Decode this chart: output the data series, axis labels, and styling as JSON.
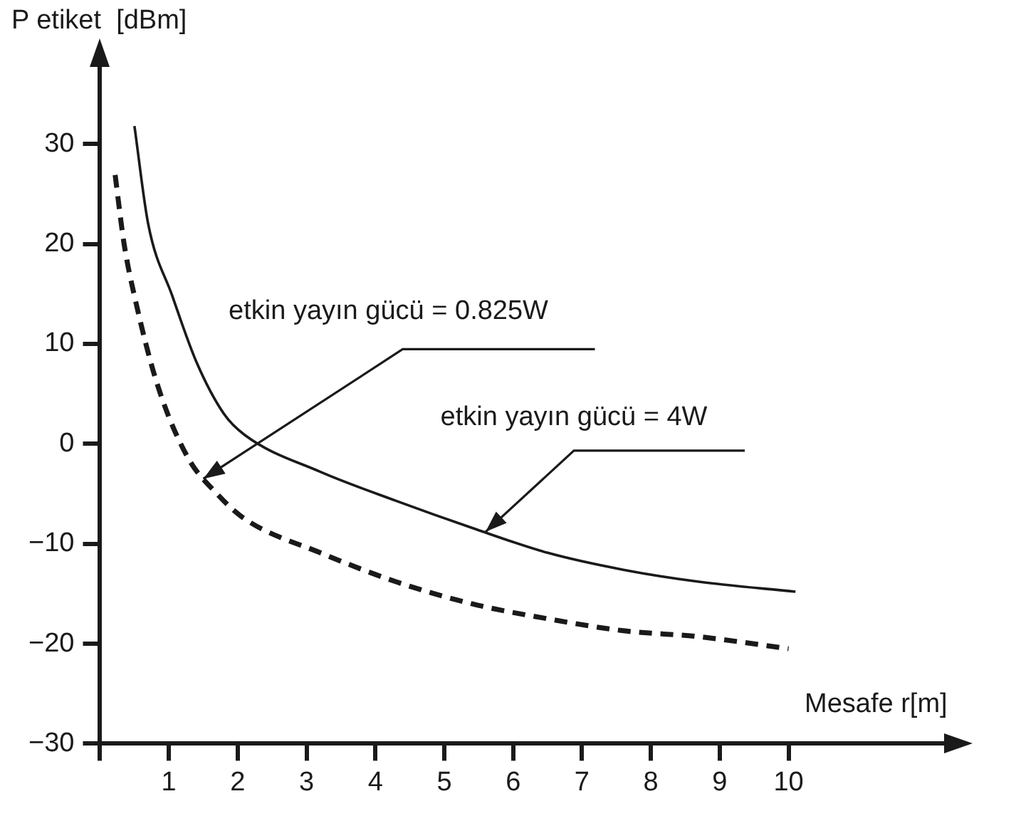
{
  "chart_data": {
    "type": "line",
    "ylabel": "P etiket  [dBm]",
    "xlabel": "Mesafe r[m]",
    "xlim": [
      0,
      12.3
    ],
    "xticks": [
      {
        "value": 0,
        "label": null
      },
      1,
      2,
      3,
      4,
      5,
      6,
      7,
      8,
      9,
      10
    ],
    "ylim": [
      -30,
      38
    ],
    "yticks": [
      -30,
      -20,
      -10,
      0,
      10,
      20,
      30
    ],
    "marker": "none",
    "series": [
      {
        "color": "#1a1a1a",
        "line_style": "solid",
        "x": [
          0.5,
          0.7,
          1.05,
          1.4,
          1.8,
          2.1,
          3.2,
          4.3,
          5.4,
          6.5,
          7.6,
          8.7,
          10.1
        ],
        "values": [
          31.8,
          22,
          14.8,
          8.2,
          3,
          0.9,
          -2.8,
          -5.7,
          -8.4,
          -10.9,
          -12.6,
          -13.8,
          -14.8
        ]
      },
      {
        "color": "#1a1a1a",
        "line_style": "dashed",
        "x": [
          0.22,
          0.35,
          0.5,
          0.83,
          1.27,
          1.7,
          2.1,
          3.2,
          4.3,
          5.4,
          6.5,
          7.6,
          8.7,
          10
        ],
        "values": [
          26.9,
          20,
          14.8,
          6,
          -1.3,
          -5,
          -7.5,
          -10.9,
          -13.8,
          -16,
          -17.5,
          -18.7,
          -19.3,
          -20.5
        ]
      }
    ],
    "annotations": [
      {
        "text": "etkin yayın gücü = 0.825W",
        "x": 1.5,
        "y": -3.5
      },
      {
        "text": "etkin yayın gücü = 4W",
        "x": 5.6,
        "y": -8.8
      }
    ]
  }
}
